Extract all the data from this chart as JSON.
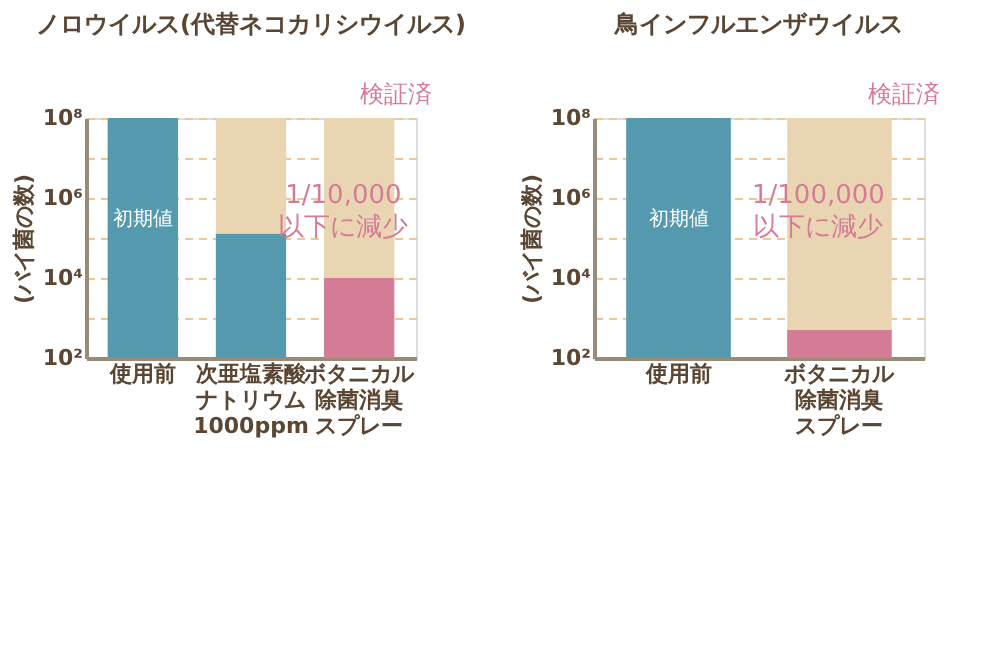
{
  "chart_data": [
    {
      "type": "bar",
      "stacked": true,
      "log": true,
      "grid": "y",
      "title": "ノロウイルス(代替ネコカリシウイルス)",
      "ylabel": "(バイ菌の数)",
      "categories": [
        "使用前",
        "次亜塩素酸ナトリウム1000ppm",
        "ボタニカル除菌消臭スプレー"
      ],
      "series": [
        {
          "colors": [
            "#5499ad",
            "#5499ad",
            "#d47c96"
          ],
          "values": [
            100000000,
            130000,
            10000
          ]
        },
        {
          "color": "#ead5b3",
          "values": [
            null,
            99870000,
            99990000
          ]
        }
      ],
      "ylim": [
        100,
        100000000
      ],
      "yticks": [
        {
          "value": 100,
          "label": "10²"
        },
        {
          "value": 1000,
          "label": null
        },
        {
          "value": 10000,
          "label": "10⁴"
        },
        {
          "value": 100000,
          "label": null
        },
        {
          "value": 1000000,
          "label": "10⁶"
        },
        {
          "value": 10000000,
          "label": null
        },
        {
          "value": 100000000,
          "label": "10⁸"
        }
      ],
      "annotations": [
        "検証済",
        "初期値",
        "1/10,000\n以下に減少"
      ]
    },
    {
      "type": "bar",
      "stacked": true,
      "log": true,
      "grid": "y",
      "title": "鳥インフルエンザウイルス",
      "ylabel": "(バイ菌の数)",
      "categories": [
        "使用前",
        "ボタニカル除菌消臭スプレー"
      ],
      "series": [
        {
          "colors": [
            "#5499ad",
            "#d47c96"
          ],
          "values": [
            100000000,
            500
          ]
        },
        {
          "color": "#ead5b3",
          "values": [
            null,
            99999500
          ]
        }
      ],
      "ylim": [
        100,
        100000000
      ],
      "yticks": [
        {
          "value": 100,
          "label": "10²"
        },
        {
          "value": 1000,
          "label": null
        },
        {
          "value": 10000,
          "label": "10⁴"
        },
        {
          "value": 100000,
          "label": null
        },
        {
          "value": 1000000,
          "label": "10⁶"
        },
        {
          "value": 10000000,
          "label": null
        },
        {
          "value": 100000000,
          "label": "10⁸"
        }
      ],
      "annotations": [
        "検証済",
        "初期値",
        "1/100,000\n以下に減少"
      ]
    }
  ]
}
